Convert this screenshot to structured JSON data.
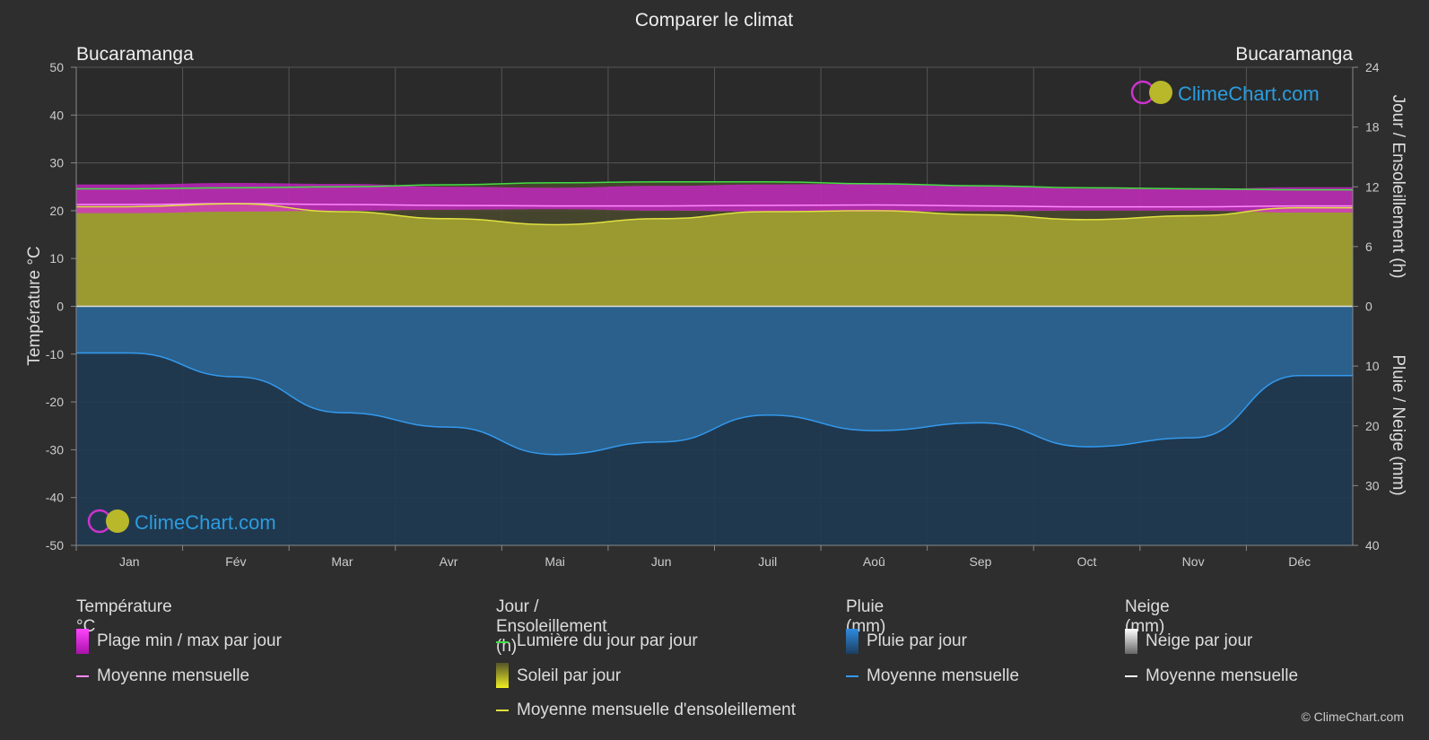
{
  "chart_data": {
    "type": "area",
    "title": "Comparer le climat",
    "location_left": "Bucaramanga",
    "location_right": "Bucaramanga",
    "left_axis": {
      "label": "Température °C",
      "ticks": [
        "50",
        "40",
        "30",
        "20",
        "10",
        "0",
        "-10",
        "-20",
        "-30",
        "-40",
        "-50"
      ],
      "range": [
        -50,
        50
      ]
    },
    "right_axis_top": {
      "label": "Jour / Ensoleillement (h)",
      "ticks": [
        "24",
        "18",
        "12",
        "6",
        "0"
      ],
      "range": [
        0,
        24
      ]
    },
    "right_axis_bottom": {
      "label": "Pluie / Neige (mm)",
      "ticks": [
        "0",
        "10",
        "20",
        "30",
        "40"
      ],
      "range": [
        0,
        40
      ]
    },
    "categories": [
      "Jan",
      "Fév",
      "Mar",
      "Avr",
      "Mai",
      "Jun",
      "Juil",
      "Aoû",
      "Sep",
      "Oct",
      "Nov",
      "Déc"
    ],
    "series": [
      {
        "name": "Lumière du jour par jour",
        "color": "#44dd44",
        "unit": "h",
        "values": [
          11.8,
          11.9,
          12.0,
          12.2,
          12.4,
          12.5,
          12.5,
          12.3,
          12.1,
          11.9,
          11.8,
          11.7
        ]
      },
      {
        "name": "Moyenne mensuelle d'ensoleillement",
        "color": "#e0e040",
        "unit": "h",
        "values": [
          10.0,
          10.3,
          9.5,
          8.8,
          8.2,
          8.8,
          9.5,
          9.6,
          9.2,
          8.7,
          9.1,
          9.9
        ]
      },
      {
        "name": "Soleil par jour",
        "color": "#a9a932",
        "unit": "h",
        "values": [
          10.0,
          10.3,
          9.5,
          8.8,
          8.2,
          8.8,
          9.5,
          9.6,
          9.2,
          8.7,
          9.1,
          9.9
        ]
      },
      {
        "name": "Plage min / max par jour",
        "color": "#dd22dd",
        "unit": "°C",
        "min": [
          19.5,
          19.8,
          20.0,
          20.2,
          20.3,
          20.0,
          19.8,
          19.8,
          19.9,
          20.0,
          20.0,
          19.6
        ],
        "max": [
          25.5,
          25.8,
          25.6,
          25.0,
          24.8,
          25.2,
          25.5,
          25.6,
          25.2,
          24.6,
          24.5,
          24.9
        ]
      },
      {
        "name": "Moyenne mensuelle",
        "color": "#ff88ff",
        "unit": "°C",
        "values": [
          21.3,
          21.5,
          21.3,
          21.1,
          21.0,
          21.0,
          21.1,
          21.2,
          21.0,
          20.8,
          20.8,
          21.0
        ]
      },
      {
        "name": "Pluie par jour",
        "color": "#2e6da0",
        "unit": "mm",
        "values": [
          7.8,
          11.8,
          17.8,
          20.2,
          24.8,
          22.7,
          18.2,
          20.8,
          19.5,
          23.5,
          22.0,
          11.6
        ]
      },
      {
        "name": "Moyenne mensuelle",
        "color": "#3399ee",
        "unit": "mm",
        "values": [
          7.8,
          11.8,
          17.8,
          20.2,
          24.8,
          22.7,
          18.2,
          20.8,
          19.5,
          23.5,
          22.0,
          11.6
        ]
      },
      {
        "name": "Neige par jour",
        "color": "#ffffff",
        "unit": "mm",
        "values": [
          0,
          0,
          0,
          0,
          0,
          0,
          0,
          0,
          0,
          0,
          0,
          0
        ]
      },
      {
        "name": "Moyenne mensuelle",
        "color": "#ffffff",
        "unit": "mm",
        "values": [
          0,
          0,
          0,
          0,
          0,
          0,
          0,
          0,
          0,
          0,
          0,
          0
        ]
      }
    ],
    "grid": true
  },
  "legend": {
    "temp": {
      "heading": "Température °C",
      "range": "Plage min / max par jour",
      "mean": "Moyenne mensuelle"
    },
    "sun": {
      "heading": "Jour / Ensoleillement (h)",
      "daylight": "Lumière du jour par jour",
      "sunshine": "Soleil par jour",
      "sun_mean": "Moyenne mensuelle d'ensoleillement"
    },
    "rain": {
      "heading": "Pluie (mm)",
      "daily": "Pluie par jour",
      "mean": "Moyenne mensuelle"
    },
    "snow": {
      "heading": "Neige (mm)",
      "daily": "Neige par jour",
      "mean": "Moyenne mensuelle"
    }
  },
  "watermark": "ClimeChart.com",
  "copyright": "© ClimeChart.com",
  "colors": {
    "background": "#2e2e2e",
    "plot_background": "#2a2a2a",
    "daylight": "#44dd44",
    "sunshine_fill": "#a9a932",
    "sunshine_line": "#e0e040",
    "temp_range": "#dd22dd",
    "temp_mean": "#ff88ff",
    "rain_fill": "#2e6da0",
    "rain_line": "#3399ee",
    "watermark_text": "#2a9de0"
  }
}
